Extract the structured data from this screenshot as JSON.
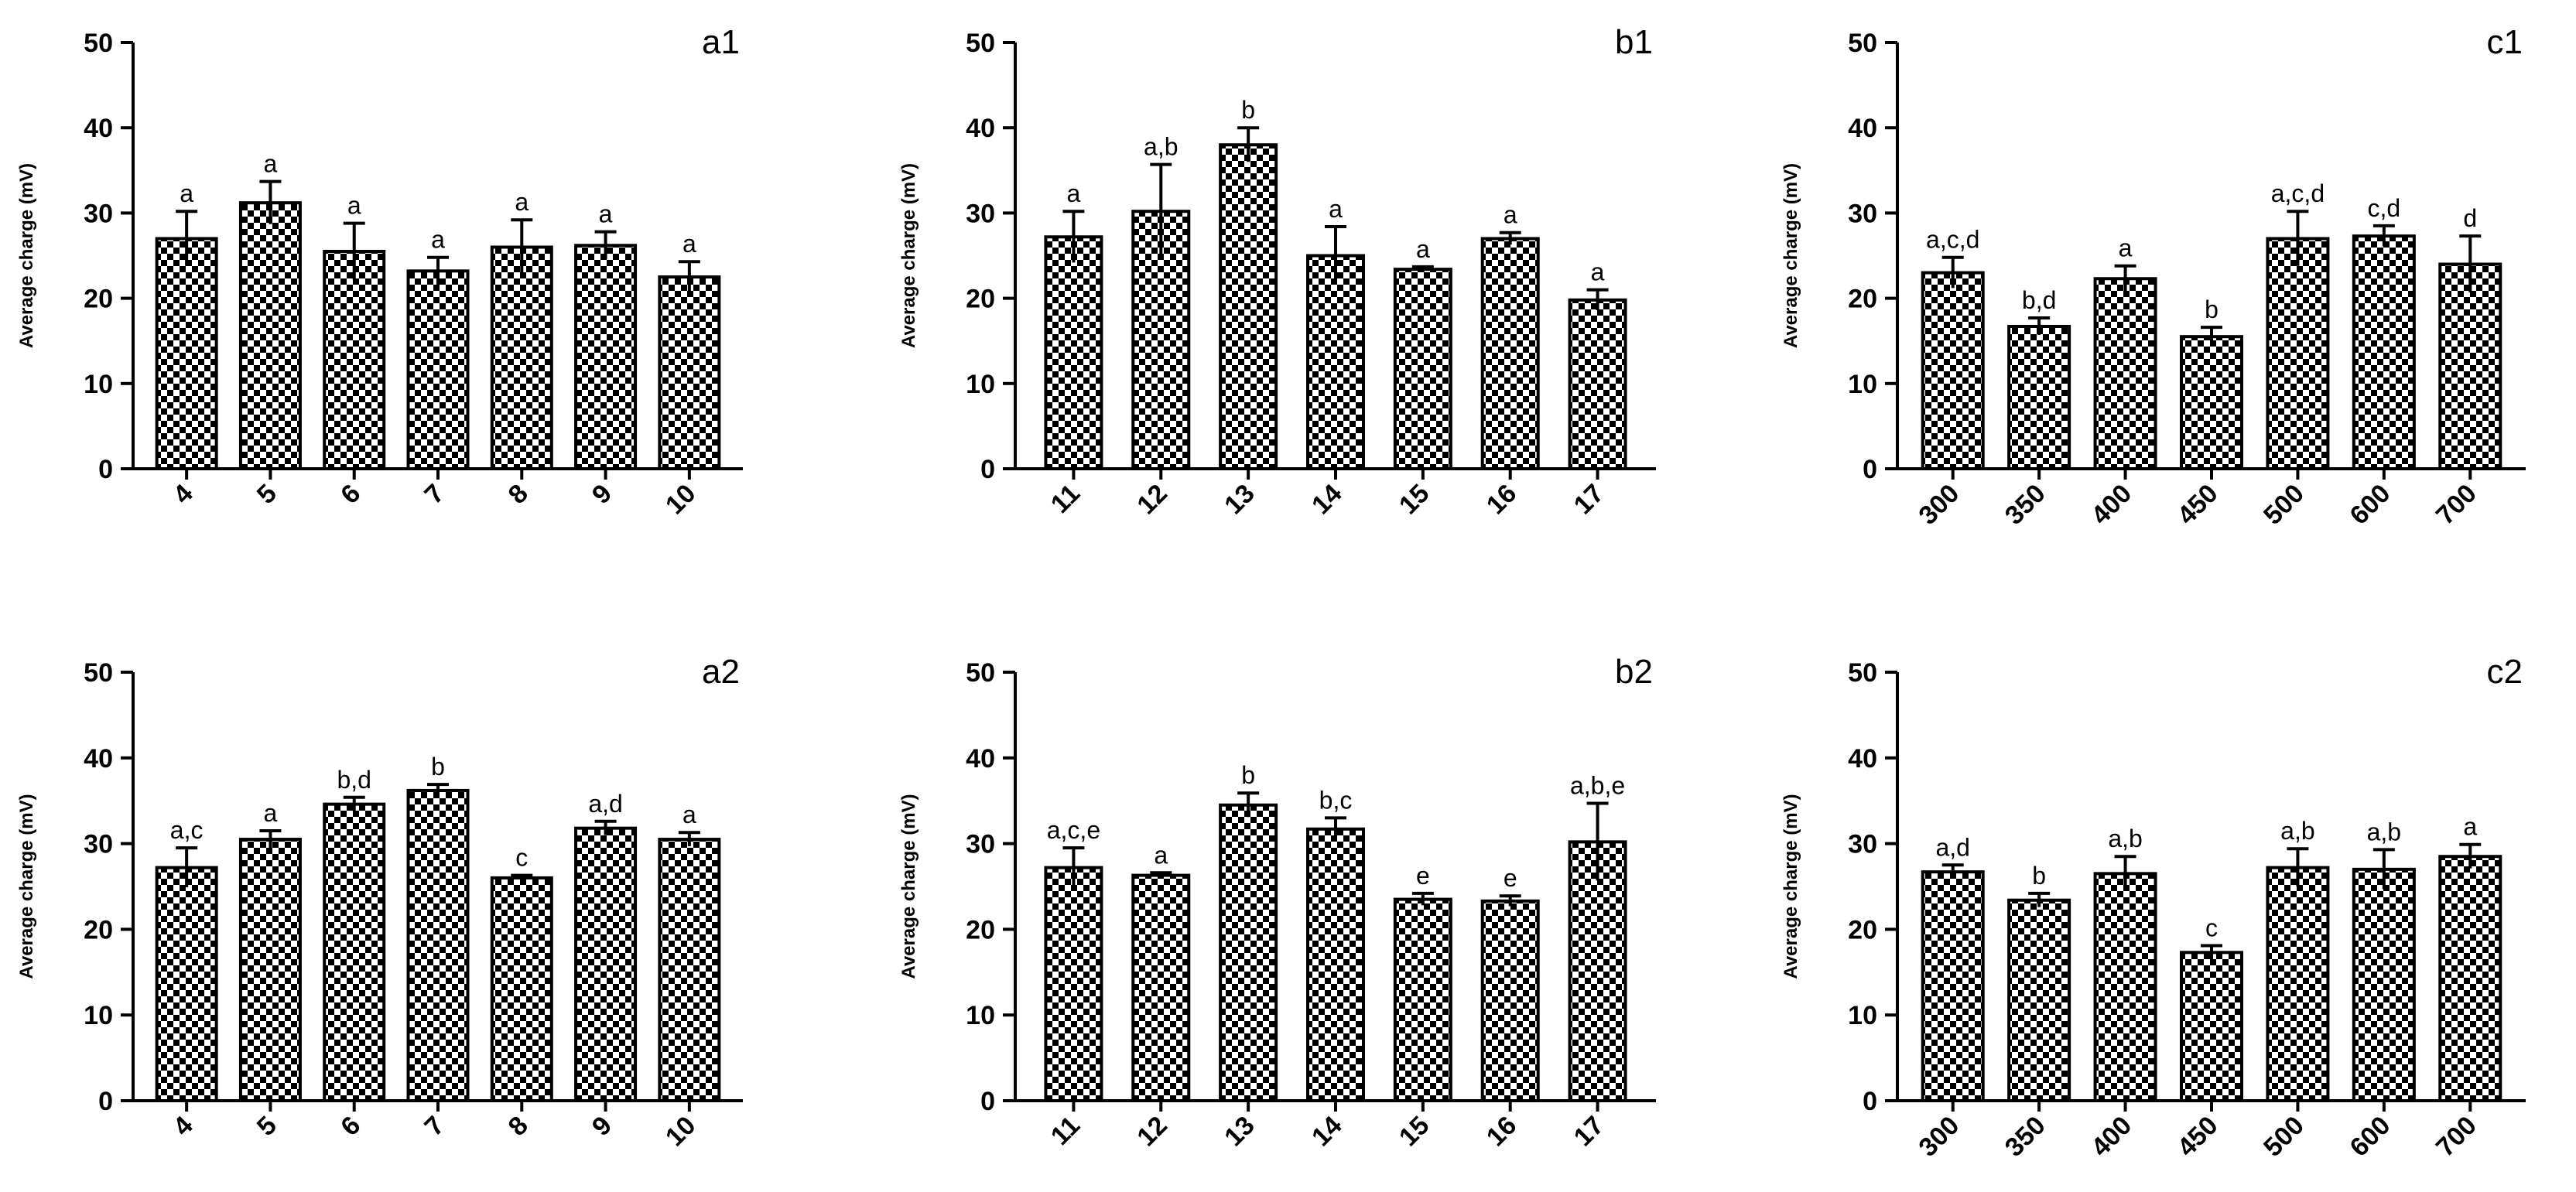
{
  "chart_data": [
    {
      "type": "bar",
      "panel": "a1",
      "categories": [
        "4",
        "5",
        "6",
        "7",
        "8",
        "9",
        "10"
      ],
      "values": [
        27.0,
        31.2,
        25.5,
        23.2,
        26.0,
        26.2,
        22.5
      ],
      "errors": [
        3.2,
        2.5,
        3.3,
        1.6,
        3.2,
        1.6,
        1.8
      ],
      "labels": [
        "a",
        "a",
        "a",
        "a",
        "a",
        "a",
        "a"
      ],
      "xlabel": "",
      "ylabel": "Average charge (mV)",
      "ylim": [
        0,
        50
      ],
      "yticks": [
        "0",
        "10",
        "20",
        "30",
        "40",
        "50"
      ]
    },
    {
      "type": "bar",
      "panel": "b1",
      "categories": [
        "11",
        "12",
        "13",
        "14",
        "15",
        "16",
        "17"
      ],
      "values": [
        27.2,
        30.2,
        38.0,
        25.0,
        23.4,
        27.0,
        19.8
      ],
      "errors": [
        3.0,
        5.5,
        2.0,
        3.4,
        0.3,
        0.7,
        1.2
      ],
      "labels": [
        "a",
        "a,b",
        "b",
        "a",
        "a",
        "a",
        "a"
      ],
      "xlabel": "",
      "ylabel": "Average charge (mV)",
      "ylim": [
        0,
        50
      ],
      "yticks": [
        "0",
        "10",
        "20",
        "30",
        "40",
        "50"
      ]
    },
    {
      "type": "bar",
      "panel": "c1",
      "categories": [
        "300",
        "350",
        "400",
        "450",
        "500",
        "600",
        "700"
      ],
      "values": [
        23.0,
        16.7,
        22.3,
        15.5,
        27.0,
        27.3,
        24.0
      ],
      "errors": [
        1.8,
        1.0,
        1.5,
        1.1,
        3.2,
        1.2,
        3.3
      ],
      "labels": [
        "a,c,d",
        "b,d",
        "a",
        "b",
        "a,c,d",
        "c,d",
        "d"
      ],
      "xlabel": "",
      "ylabel": "Average charge (mV)",
      "ylim": [
        0,
        50
      ],
      "yticks": [
        "0",
        "10",
        "20",
        "30",
        "40",
        "50"
      ]
    },
    {
      "type": "bar",
      "panel": "a2",
      "categories": [
        "4",
        "5",
        "6",
        "7",
        "8",
        "9",
        "10"
      ],
      "values": [
        27.2,
        30.5,
        34.6,
        36.2,
        26.0,
        31.8,
        30.5
      ],
      "errors": [
        2.3,
        1.0,
        0.8,
        0.7,
        0.3,
        0.8,
        0.8
      ],
      "labels": [
        "a,c",
        "a",
        "b,d",
        "b",
        "c",
        "a,d",
        "a"
      ],
      "xlabel": "",
      "ylabel": "Average charge (mV)",
      "ylim": [
        0,
        50
      ],
      "yticks": [
        "0",
        "10",
        "20",
        "30",
        "40",
        "50"
      ]
    },
    {
      "type": "bar",
      "panel": "b2",
      "categories": [
        "11",
        "12",
        "13",
        "14",
        "15",
        "16",
        "17"
      ],
      "values": [
        27.2,
        26.3,
        34.5,
        31.7,
        23.5,
        23.3,
        30.2
      ],
      "errors": [
        2.3,
        0.3,
        1.4,
        1.3,
        0.7,
        0.6,
        4.5
      ],
      "labels": [
        "a,c,e",
        "a",
        "b",
        "b,c",
        "e",
        "e",
        "a,b,e"
      ],
      "xlabel": "",
      "ylabel": "Average charge (mV)",
      "ylim": [
        0,
        50
      ],
      "yticks": [
        "0",
        "10",
        "20",
        "30",
        "40",
        "50"
      ]
    },
    {
      "type": "bar",
      "panel": "c2",
      "categories": [
        "300",
        "350",
        "400",
        "450",
        "500",
        "600",
        "700"
      ],
      "values": [
        26.7,
        23.4,
        26.5,
        17.3,
        27.2,
        27.0,
        28.5
      ],
      "errors": [
        0.8,
        0.8,
        2.0,
        0.8,
        2.2,
        2.3,
        1.4
      ],
      "labels": [
        "a,d",
        "b",
        "a,b",
        "c",
        "a,b",
        "a,b",
        "a"
      ],
      "xlabel": "",
      "ylabel": "Average charge (mV)",
      "ylim": [
        0,
        50
      ],
      "yticks": [
        "0",
        "10",
        "20",
        "30",
        "40",
        "50"
      ]
    }
  ]
}
